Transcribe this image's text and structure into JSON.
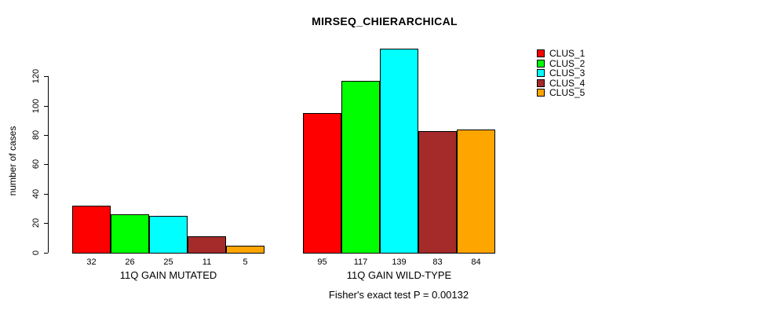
{
  "chart_data": {
    "type": "bar",
    "title": "MIRSEQ_CHIERARCHICAL",
    "ylabel": "number of cases",
    "xlabel": "",
    "ylim": [
      0,
      140
    ],
    "y_ticks": [
      0,
      20,
      40,
      60,
      80,
      100,
      120
    ],
    "grid": false,
    "legend_position": "right",
    "categories": [
      "11Q GAIN MUTATED",
      "11Q GAIN WILD-TYPE"
    ],
    "series": [
      {
        "name": "CLUS_1",
        "color": "#ff0000",
        "values": [
          32,
          95
        ]
      },
      {
        "name": "CLUS_2",
        "color": "#00ff00",
        "values": [
          26,
          117
        ]
      },
      {
        "name": "CLUS_3",
        "color": "#00ffff",
        "values": [
          25,
          139
        ]
      },
      {
        "name": "CLUS_4",
        "color": "#a52a2a",
        "values": [
          11,
          83
        ]
      },
      {
        "name": "CLUS_5",
        "color": "#ffa500",
        "values": [
          5,
          84
        ]
      }
    ],
    "bar_value_labels": [
      [
        32,
        26,
        25,
        11,
        5
      ],
      [
        95,
        117,
        139,
        83,
        84
      ]
    ],
    "annotation": "Fisher's exact test P = 0.00132"
  }
}
